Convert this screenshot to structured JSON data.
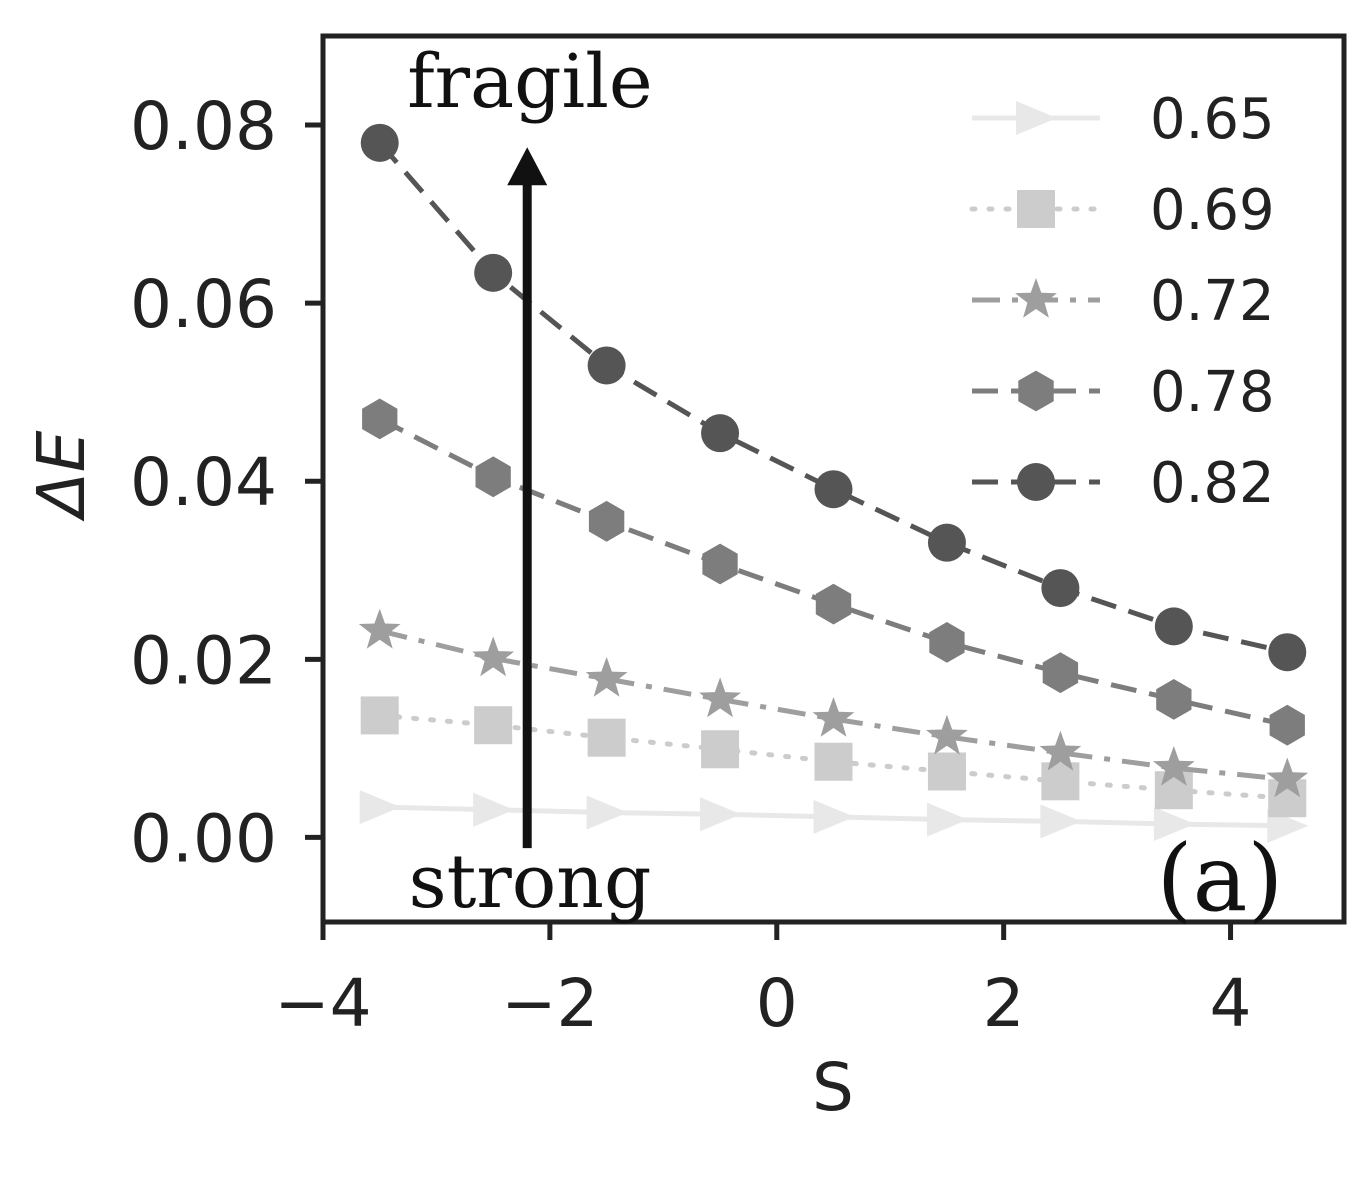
{
  "chart_data": {
    "type": "line",
    "title": "",
    "xlabel": "S",
    "ylabel": "ΔE",
    "xlim": [
      -4,
      5
    ],
    "ylim": [
      -0.0095,
      0.09
    ],
    "xticks": [
      -4,
      -2,
      0,
      2,
      4
    ],
    "xtick_labels": [
      "−4",
      "−2",
      "0",
      "2",
      "4"
    ],
    "yticks": [
      0.0,
      0.02,
      0.04,
      0.06,
      0.08
    ],
    "ytick_labels": [
      "0.00",
      "0.02",
      "0.04",
      "0.06",
      "0.08"
    ],
    "grid": false,
    "legend_position": "top-right",
    "x": [
      -3.5,
      -2.5,
      -1.5,
      -0.5,
      0.5,
      1.5,
      2.5,
      3.5,
      4.5
    ],
    "series": [
      {
        "name": "0.65",
        "values": [
          0.0034,
          0.0031,
          0.0028,
          0.0026,
          0.0023,
          0.002,
          0.0018,
          0.0015,
          0.0013
        ],
        "color": "#e8e8e8",
        "marker": "triangle-right",
        "linestyle": "solid"
      },
      {
        "name": "0.69",
        "values": [
          0.0137,
          0.0126,
          0.0112,
          0.0099,
          0.0085,
          0.0074,
          0.0063,
          0.0053,
          0.0044
        ],
        "color": "#cccccc",
        "marker": "square",
        "linestyle": "dotted"
      },
      {
        "name": "0.72",
        "values": [
          0.0232,
          0.0201,
          0.0178,
          0.0155,
          0.0133,
          0.0113,
          0.0095,
          0.0078,
          0.0065
        ],
        "color": "#9e9e9e",
        "marker": "star",
        "linestyle": "dashdot"
      },
      {
        "name": "0.78",
        "values": [
          0.047,
          0.0405,
          0.0355,
          0.0307,
          0.0262,
          0.0219,
          0.0185,
          0.0155,
          0.0126
        ],
        "color": "#7d7d7d",
        "marker": "hexagon",
        "linestyle": "dashed"
      },
      {
        "name": "0.82",
        "values": [
          0.078,
          0.0634,
          0.053,
          0.0454,
          0.0391,
          0.0331,
          0.028,
          0.0237,
          0.0208
        ],
        "color": "#555555",
        "marker": "circle",
        "linestyle": "dashed"
      }
    ],
    "annotations": {
      "top_label": "fragile",
      "bottom_label": "strong",
      "panel_label": "(a)",
      "arrow": {
        "x": -2.2,
        "y_start": -0.0012,
        "y_end": 0.0775
      }
    }
  }
}
